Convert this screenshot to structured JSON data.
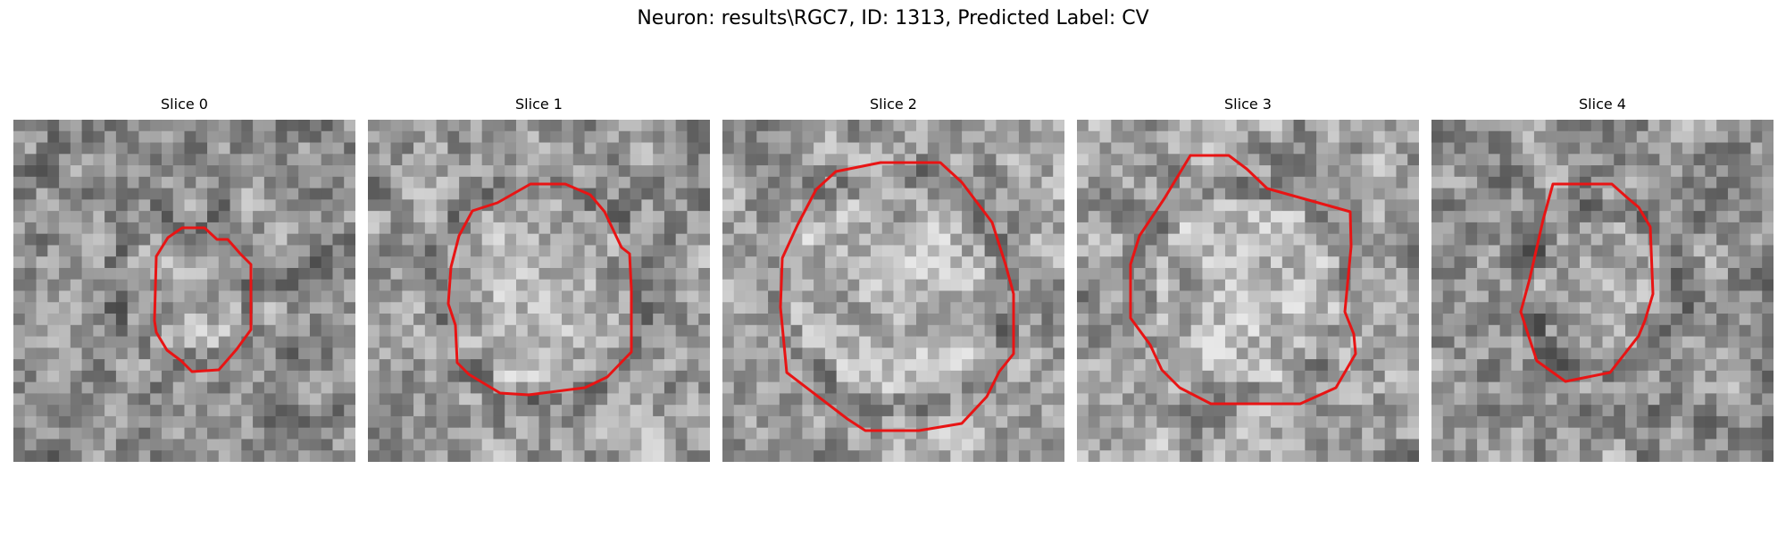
{
  "figure": {
    "title": "Neuron: results\\RGC7, ID: 1313, Predicted Label: CV"
  },
  "panels": [
    {
      "title": "Slice 0",
      "seed": 11,
      "bias": -0.05,
      "outline_color": "#e81414",
      "blob": 0.18
    },
    {
      "title": "Slice 1",
      "seed": 23,
      "bias": 0.02,
      "outline_color": "#e81414",
      "blob": 0.28
    },
    {
      "title": "Slice 2",
      "seed": 37,
      "bias": 0.04,
      "outline_color": "#e81414",
      "blob": 0.3
    },
    {
      "title": "Slice 3",
      "seed": 41,
      "bias": 0.05,
      "outline_color": "#e81414",
      "blob": 0.27
    },
    {
      "title": "Slice 4",
      "seed": 59,
      "bias": -0.02,
      "outline_color": "#e81414",
      "blob": 0.2
    }
  ]
}
